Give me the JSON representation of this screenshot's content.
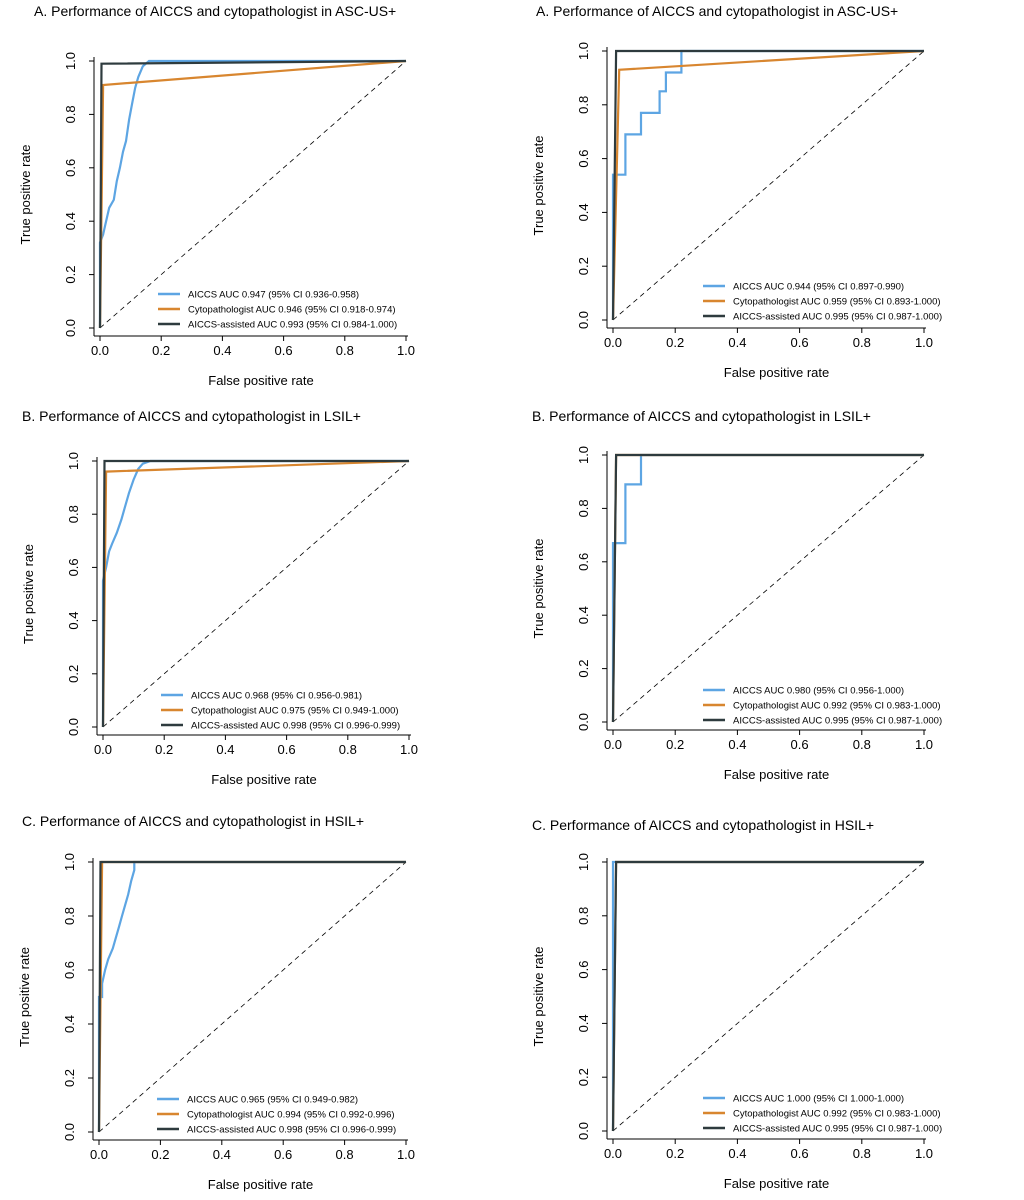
{
  "colors": {
    "aiccs": "#5DA5E3",
    "cytopathologist": "#D8862F",
    "assisted": "#2E3B3E"
  },
  "chart_data": [
    {
      "type": "line",
      "title": "A.  Performance of AICCS and cytopathologist in ASC-US+",
      "xlabel": "False positive rate",
      "ylabel": "True positive rate",
      "xlim": [
        0,
        1
      ],
      "ylim": [
        0,
        1
      ],
      "x_ticks": [
        "0.0",
        "0.2",
        "0.4",
        "0.6",
        "0.8",
        "1.0"
      ],
      "y_ticks": [
        "0.0",
        "0.2",
        "0.4",
        "0.6",
        "0.8",
        "1.0"
      ],
      "series": [
        {
          "name": "AICCS AUC  0.947 (95% CI 0.936-0.958)",
          "color_key": "aiccs",
          "points": [
            [
              0,
              0
            ],
            [
              0,
              0.32
            ],
            [
              0.01,
              0.35
            ],
            [
              0.02,
              0.4
            ],
            [
              0.03,
              0.45
            ],
            [
              0.045,
              0.48
            ],
            [
              0.055,
              0.55
            ],
            [
              0.065,
              0.6
            ],
            [
              0.075,
              0.66
            ],
            [
              0.085,
              0.7
            ],
            [
              0.095,
              0.78
            ],
            [
              0.105,
              0.84
            ],
            [
              0.115,
              0.9
            ],
            [
              0.125,
              0.94
            ],
            [
              0.14,
              0.98
            ],
            [
              0.16,
              1.0
            ],
            [
              1,
              1
            ]
          ]
        },
        {
          "name": "Cytopathologist AUC  0.946 (95% CI 0.918-0.974)",
          "color_key": "cytopathologist",
          "points": [
            [
              0,
              0
            ],
            [
              0.01,
              0.91
            ],
            [
              1,
              1
            ]
          ]
        },
        {
          "name": "AICCS-assisted AUC 0.993 (95% CI 0.984-1.000)",
          "color_key": "assisted",
          "points": [
            [
              0,
              0
            ],
            [
              0.005,
              0.99
            ],
            [
              1,
              1
            ]
          ]
        }
      ]
    },
    {
      "type": "line",
      "title": "A.  Performance of AICCS and cytopathologist in ASC-US+",
      "xlabel": "False positive rate",
      "ylabel": "True positive rate",
      "xlim": [
        0,
        1
      ],
      "ylim": [
        0,
        1
      ],
      "x_ticks": [
        "0.0",
        "0.2",
        "0.4",
        "0.6",
        "0.8",
        "1.0"
      ],
      "y_ticks": [
        "0.0",
        "0.2",
        "0.4",
        "0.6",
        "0.8",
        "1.0"
      ],
      "series": [
        {
          "name": "AICCS  AUC  0.944  (95% CI 0.897-0.990)",
          "color_key": "aiccs",
          "points": [
            [
              0,
              0
            ],
            [
              0,
              0.54
            ],
            [
              0.04,
              0.54
            ],
            [
              0.04,
              0.69
            ],
            [
              0.09,
              0.69
            ],
            [
              0.09,
              0.77
            ],
            [
              0.15,
              0.77
            ],
            [
              0.15,
              0.85
            ],
            [
              0.17,
              0.85
            ],
            [
              0.17,
              0.92
            ],
            [
              0.22,
              0.92
            ],
            [
              0.22,
              1.0
            ],
            [
              1,
              1
            ]
          ]
        },
        {
          "name": "Cytopathologist AUC  0.959 (95% CI 0.893-1.000)",
          "color_key": "cytopathologist",
          "points": [
            [
              0,
              0
            ],
            [
              0.02,
              0.93
            ],
            [
              1,
              1
            ]
          ]
        },
        {
          "name": "AICCS-assisted AUC 0.995 (95% CI 0.987-1.000)",
          "color_key": "assisted",
          "points": [
            [
              0,
              0
            ],
            [
              0.01,
              1.0
            ],
            [
              1,
              1
            ]
          ]
        }
      ]
    },
    {
      "type": "line",
      "title": "B.  Performance of AICCS and cytopathologist in LSIL+",
      "xlabel": "False positive rate",
      "ylabel": "True positive rate",
      "xlim": [
        0,
        1
      ],
      "ylim": [
        0,
        1
      ],
      "x_ticks": [
        "0.0",
        "0.2",
        "0.4",
        "0.6",
        "0.8",
        "1.0"
      ],
      "y_ticks": [
        "0.0",
        "0.2",
        "0.4",
        "0.6",
        "0.8",
        "1.0"
      ],
      "series": [
        {
          "name": "AICCS  AUC  0.968  (95% CI 0.956-0.981)",
          "color_key": "aiccs",
          "points": [
            [
              0,
              0
            ],
            [
              0,
              0.55
            ],
            [
              0.01,
              0.6
            ],
            [
              0.02,
              0.66
            ],
            [
              0.03,
              0.69
            ],
            [
              0.045,
              0.73
            ],
            [
              0.06,
              0.78
            ],
            [
              0.07,
              0.82
            ],
            [
              0.085,
              0.88
            ],
            [
              0.1,
              0.93
            ],
            [
              0.115,
              0.97
            ],
            [
              0.13,
              0.99
            ],
            [
              0.155,
              1.0
            ],
            [
              1,
              1
            ]
          ]
        },
        {
          "name": "Cytopathologist AUC  0.975  (95% CI 0.949-1.000)",
          "color_key": "cytopathologist",
          "points": [
            [
              0,
              0
            ],
            [
              0.01,
              0.96
            ],
            [
              1,
              1
            ]
          ]
        },
        {
          "name": "AICCS-assisted AUC 0.998 (95% CI 0.996-0.999)",
          "color_key": "assisted",
          "points": [
            [
              0,
              0
            ],
            [
              0.005,
              1.0
            ],
            [
              1,
              1
            ]
          ]
        }
      ]
    },
    {
      "type": "line",
      "title": "B.  Performance of AICCS and cytopathologist in LSIL+",
      "xlabel": "False positive rate",
      "ylabel": "True positive rate",
      "xlim": [
        0,
        1
      ],
      "ylim": [
        0,
        1
      ],
      "x_ticks": [
        "0.0",
        "0.2",
        "0.4",
        "0.6",
        "0.8",
        "1.0"
      ],
      "y_ticks": [
        "0.0",
        "0.2",
        "0.4",
        "0.6",
        "0.8",
        "1.0"
      ],
      "series": [
        {
          "name": "AICCS  AUC  0.980 (95% CI 0.956-1.000)",
          "color_key": "aiccs",
          "points": [
            [
              0,
              0
            ],
            [
              0,
              0.67
            ],
            [
              0.04,
              0.67
            ],
            [
              0.04,
              0.89
            ],
            [
              0.09,
              0.89
            ],
            [
              0.09,
              1.0
            ],
            [
              1,
              1
            ]
          ]
        },
        {
          "name": "Cytopathologist AUC  0.992 (95% CI 0.983-1.000)",
          "color_key": "cytopathologist",
          "points": [
            [
              0,
              0
            ],
            [
              0.01,
              1.0
            ],
            [
              1,
              1
            ]
          ]
        },
        {
          "name": "AICCS-assisted AUC 0.995 (95% CI 0.987-1.000)",
          "color_key": "assisted",
          "points": [
            [
              0,
              0
            ],
            [
              0.01,
              1.0
            ],
            [
              1,
              1
            ]
          ]
        }
      ]
    },
    {
      "type": "line",
      "title": "C.  Performance of AICCS and cytopathologist in HSIL+",
      "xlabel": "False positive rate",
      "ylabel": "True positive rate",
      "xlim": [
        0,
        1
      ],
      "ylim": [
        0,
        1
      ],
      "x_ticks": [
        "0.0",
        "0.2",
        "0.4",
        "0.6",
        "0.8",
        "1.0"
      ],
      "y_ticks": [
        "0.0",
        "0.2",
        "0.4",
        "0.6",
        "0.8",
        "1.0"
      ],
      "series": [
        {
          "name": "AICCS  AUC  0.965  (95% CI 0.949-0.982)",
          "color_key": "aiccs",
          "points": [
            [
              0,
              0
            ],
            [
              0,
              0.5
            ],
            [
              0.01,
              0.5
            ],
            [
              0.01,
              0.55
            ],
            [
              0.02,
              0.6
            ],
            [
              0.03,
              0.64
            ],
            [
              0.045,
              0.68
            ],
            [
              0.055,
              0.72
            ],
            [
              0.065,
              0.76
            ],
            [
              0.075,
              0.8
            ],
            [
              0.085,
              0.84
            ],
            [
              0.095,
              0.88
            ],
            [
              0.105,
              0.93
            ],
            [
              0.115,
              0.97
            ],
            [
              0.115,
              1.0
            ],
            [
              1,
              1
            ]
          ]
        },
        {
          "name": "Cytopathologist AUC  0.994  (95% CI 0.992-0.996)",
          "color_key": "cytopathologist",
          "points": [
            [
              0,
              0
            ],
            [
              0.01,
              1.0
            ],
            [
              1,
              1
            ]
          ]
        },
        {
          "name": "AICCS-assisted AUC 0.998 (95% CI 0.996-0.999)",
          "color_key": "assisted",
          "points": [
            [
              0,
              0
            ],
            [
              0.005,
              1.0
            ],
            [
              1,
              1
            ]
          ]
        }
      ]
    },
    {
      "type": "line",
      "title": "C.  Performance of AICCS and cytopathologist in HSIL+",
      "xlabel": "False positive rate",
      "ylabel": "True positive rate",
      "xlim": [
        0,
        1
      ],
      "ylim": [
        0,
        1
      ],
      "x_ticks": [
        "0.0",
        "0.2",
        "0.4",
        "0.6",
        "0.8",
        "1.0"
      ],
      "y_ticks": [
        "0.0",
        "0.2",
        "0.4",
        "0.6",
        "0.8",
        "1.0"
      ],
      "series": [
        {
          "name": "AICCS  AUC  1.000  (95% CI 1.000-1.000)",
          "color_key": "aiccs",
          "points": [
            [
              0,
              0
            ],
            [
              0,
              1.0
            ],
            [
              1,
              1
            ]
          ]
        },
        {
          "name": "Cytopathologist AUC  0.992  (95% CI 0.983-1.000)",
          "color_key": "cytopathologist",
          "points": [
            [
              0,
              0
            ],
            [
              0.01,
              1.0
            ],
            [
              1,
              1
            ]
          ]
        },
        {
          "name": "AICCS-assisted AUC 0.995 (95% CI 0.987-1.000)",
          "color_key": "assisted",
          "points": [
            [
              0,
              0
            ],
            [
              0.01,
              1.0
            ],
            [
              1,
              1
            ]
          ]
        }
      ]
    }
  ]
}
